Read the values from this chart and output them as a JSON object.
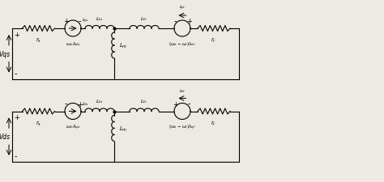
{
  "fig_width": 4.74,
  "fig_height": 2.26,
  "dpi": 100,
  "bg_color": "#ede9e3",
  "line_color": "black",
  "circuit1": {
    "v_label": "Vqs",
    "vs1_label": "$\\omega_e\\lambda_{ds}$",
    "curr1_label": "$i_{qs}$",
    "lls_label": "$L_{\\ell s}$",
    "lm_label": "$L_m$",
    "llr_label": "$L_{\\ell r}$",
    "vs2_label": "$(\\omega_e-\\omega_r)\\lambda_{dr}$",
    "curr2_label": "$i_{qr}$",
    "rs_label": "$r_s$",
    "rr_label": "$r_r$",
    "vs1_plus_left": true,
    "vs2_plus_left": false
  },
  "circuit2": {
    "v_label": "Vds",
    "vs1_label": "$\\omega_e\\lambda_{qs}$",
    "curr1_label": "$i_{ds}$",
    "lls_label": "$L_{\\ell s}$",
    "lm_label": "$L_m$",
    "llr_label": "$L_{\\ell r}$",
    "vs2_label": "$(\\omega_e-\\omega_r)\\lambda_{qf}$",
    "curr2_label": "$i_{dr}$",
    "rs_label": "$r_s$",
    "rr_label": "$r_r$",
    "vs1_plus_left": false,
    "vs2_plus_left": true
  }
}
